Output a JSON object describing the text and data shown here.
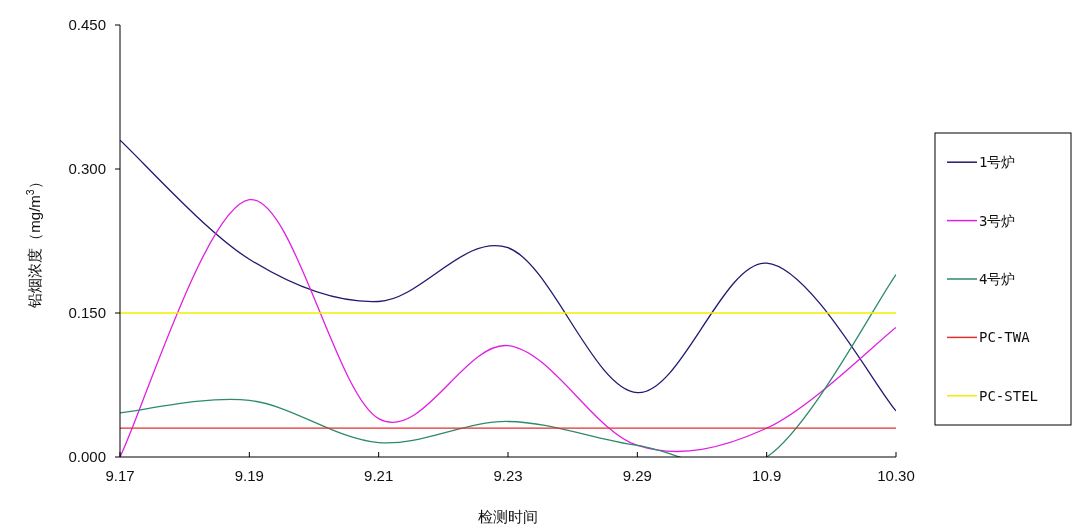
{
  "chart_data": {
    "type": "line",
    "xlabel": "检测时间",
    "ylabel": "铅烟浓度（mg/m$^{3}$）",
    "categories": [
      "9.17",
      "9.19",
      "9.21",
      "9.23",
      "9.29",
      "10.9",
      "10.30"
    ],
    "ylim": [
      0,
      0.45
    ],
    "yticks": [
      {
        "value": 0,
        "label": "0.000"
      },
      {
        "value": 0.15,
        "label": "0.150"
      },
      {
        "value": 0.3,
        "label": "0.300"
      },
      {
        "value": 0.45,
        "label": "0.450"
      }
    ],
    "grid": false,
    "legend": "right",
    "marker": "none",
    "series": [
      {
        "name": "1号炉",
        "color": "#1f1a6e",
        "values": [
          0.33,
          0.206,
          0.162,
          0.218,
          0.067,
          0.202,
          0.048
        ]
      },
      {
        "name": "3号炉",
        "color": "#e020e0",
        "values": [
          0,
          0.268,
          0.04,
          0.116,
          0.012,
          0.03,
          0.135
        ]
      },
      {
        "name": "4号炉",
        "color": "#2e8b6a",
        "values": [
          0.046,
          0.059,
          0.015,
          0.037,
          0.012,
          0,
          0.19
        ]
      },
      {
        "name": "PC-TWA",
        "color": "#e03030",
        "values": [
          0.03,
          0.03,
          0.03,
          0.03,
          0.03,
          0.03,
          0.03
        ]
      },
      {
        "name": "PC-STEL",
        "color": "#f0f000",
        "values": [
          0.15,
          0.15,
          0.15,
          0.15,
          0.15,
          0.15,
          0.15
        ]
      }
    ]
  }
}
